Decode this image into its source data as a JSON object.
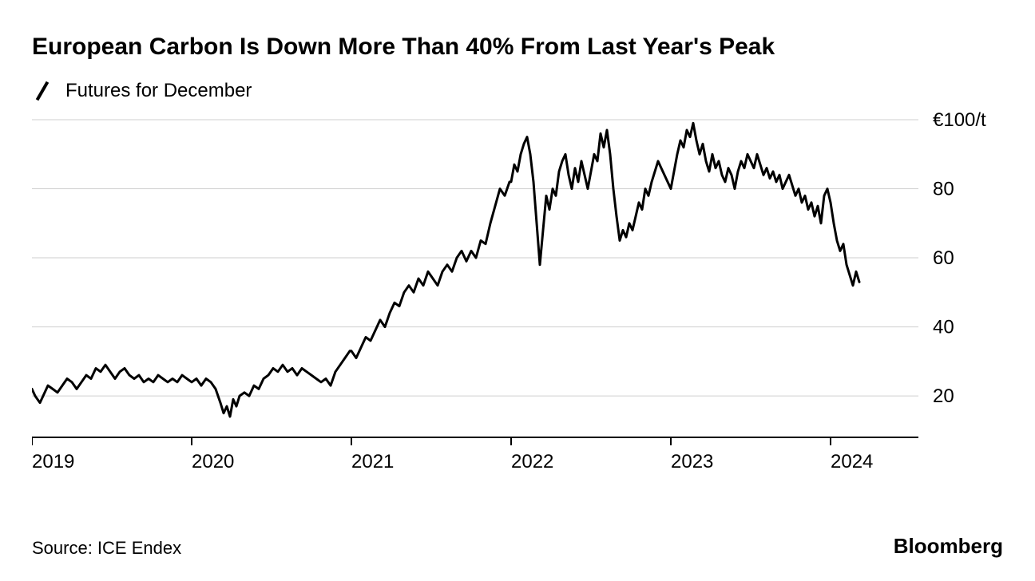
{
  "title": "European Carbon Is Down More Than 40% From Last Year's Peak",
  "legend_label": "Futures for December",
  "source": "Source: ICE Endex",
  "brand": "Bloomberg",
  "chart": {
    "type": "line",
    "background_color": "#ffffff",
    "grid_color": "#cfcfcf",
    "axis_color": "#000000",
    "line_color": "#000000",
    "line_width": 3,
    "font_title": 30,
    "font_labels": 24,
    "xlim": [
      2019.0,
      2024.55
    ],
    "ylim": [
      8,
      100
    ],
    "y_ticks": [
      20,
      40,
      60,
      80,
      100
    ],
    "y_tick_labels": [
      "20",
      "40",
      "60",
      "80",
      "€100/t"
    ],
    "y_top_label_special": true,
    "x_ticks": [
      2019,
      2020,
      2021,
      2022,
      2023,
      2024
    ],
    "x_tick_labels": [
      "2019",
      "2020",
      "2021",
      "2022",
      "2023",
      "2024"
    ],
    "series": [
      {
        "x": 2019.0,
        "y": 22
      },
      {
        "x": 2019.02,
        "y": 20
      },
      {
        "x": 2019.05,
        "y": 18
      },
      {
        "x": 2019.07,
        "y": 20
      },
      {
        "x": 2019.1,
        "y": 23
      },
      {
        "x": 2019.13,
        "y": 22
      },
      {
        "x": 2019.16,
        "y": 21
      },
      {
        "x": 2019.19,
        "y": 23
      },
      {
        "x": 2019.22,
        "y": 25
      },
      {
        "x": 2019.25,
        "y": 24
      },
      {
        "x": 2019.28,
        "y": 22
      },
      {
        "x": 2019.31,
        "y": 24
      },
      {
        "x": 2019.34,
        "y": 26
      },
      {
        "x": 2019.37,
        "y": 25
      },
      {
        "x": 2019.4,
        "y": 28
      },
      {
        "x": 2019.43,
        "y": 27
      },
      {
        "x": 2019.46,
        "y": 29
      },
      {
        "x": 2019.49,
        "y": 27
      },
      {
        "x": 2019.52,
        "y": 25
      },
      {
        "x": 2019.55,
        "y": 27
      },
      {
        "x": 2019.58,
        "y": 28
      },
      {
        "x": 2019.61,
        "y": 26
      },
      {
        "x": 2019.64,
        "y": 25
      },
      {
        "x": 2019.67,
        "y": 26
      },
      {
        "x": 2019.7,
        "y": 24
      },
      {
        "x": 2019.73,
        "y": 25
      },
      {
        "x": 2019.76,
        "y": 24
      },
      {
        "x": 2019.79,
        "y": 26
      },
      {
        "x": 2019.82,
        "y": 25
      },
      {
        "x": 2019.85,
        "y": 24
      },
      {
        "x": 2019.88,
        "y": 25
      },
      {
        "x": 2019.91,
        "y": 24
      },
      {
        "x": 2019.94,
        "y": 26
      },
      {
        "x": 2019.97,
        "y": 25
      },
      {
        "x": 2020.0,
        "y": 24
      },
      {
        "x": 2020.03,
        "y": 25
      },
      {
        "x": 2020.06,
        "y": 23
      },
      {
        "x": 2020.09,
        "y": 25
      },
      {
        "x": 2020.12,
        "y": 24
      },
      {
        "x": 2020.15,
        "y": 22
      },
      {
        "x": 2020.18,
        "y": 18
      },
      {
        "x": 2020.2,
        "y": 15
      },
      {
        "x": 2020.22,
        "y": 17
      },
      {
        "x": 2020.24,
        "y": 14
      },
      {
        "x": 2020.26,
        "y": 19
      },
      {
        "x": 2020.28,
        "y": 17
      },
      {
        "x": 2020.3,
        "y": 20
      },
      {
        "x": 2020.33,
        "y": 21
      },
      {
        "x": 2020.36,
        "y": 20
      },
      {
        "x": 2020.39,
        "y": 23
      },
      {
        "x": 2020.42,
        "y": 22
      },
      {
        "x": 2020.45,
        "y": 25
      },
      {
        "x": 2020.48,
        "y": 26
      },
      {
        "x": 2020.51,
        "y": 28
      },
      {
        "x": 2020.54,
        "y": 27
      },
      {
        "x": 2020.57,
        "y": 29
      },
      {
        "x": 2020.6,
        "y": 27
      },
      {
        "x": 2020.63,
        "y": 28
      },
      {
        "x": 2020.66,
        "y": 26
      },
      {
        "x": 2020.69,
        "y": 28
      },
      {
        "x": 2020.72,
        "y": 27
      },
      {
        "x": 2020.75,
        "y": 26
      },
      {
        "x": 2020.78,
        "y": 25
      },
      {
        "x": 2020.81,
        "y": 24
      },
      {
        "x": 2020.84,
        "y": 25
      },
      {
        "x": 2020.87,
        "y": 23
      },
      {
        "x": 2020.9,
        "y": 27
      },
      {
        "x": 2020.93,
        "y": 29
      },
      {
        "x": 2020.96,
        "y": 31
      },
      {
        "x": 2020.99,
        "y": 33
      },
      {
        "x": 2021.0,
        "y": 33
      },
      {
        "x": 2021.03,
        "y": 31
      },
      {
        "x": 2021.06,
        "y": 34
      },
      {
        "x": 2021.09,
        "y": 37
      },
      {
        "x": 2021.12,
        "y": 36
      },
      {
        "x": 2021.15,
        "y": 39
      },
      {
        "x": 2021.18,
        "y": 42
      },
      {
        "x": 2021.21,
        "y": 40
      },
      {
        "x": 2021.24,
        "y": 44
      },
      {
        "x": 2021.27,
        "y": 47
      },
      {
        "x": 2021.3,
        "y": 46
      },
      {
        "x": 2021.33,
        "y": 50
      },
      {
        "x": 2021.36,
        "y": 52
      },
      {
        "x": 2021.39,
        "y": 50
      },
      {
        "x": 2021.42,
        "y": 54
      },
      {
        "x": 2021.45,
        "y": 52
      },
      {
        "x": 2021.48,
        "y": 56
      },
      {
        "x": 2021.51,
        "y": 54
      },
      {
        "x": 2021.54,
        "y": 52
      },
      {
        "x": 2021.57,
        "y": 56
      },
      {
        "x": 2021.6,
        "y": 58
      },
      {
        "x": 2021.63,
        "y": 56
      },
      {
        "x": 2021.66,
        "y": 60
      },
      {
        "x": 2021.69,
        "y": 62
      },
      {
        "x": 2021.72,
        "y": 59
      },
      {
        "x": 2021.75,
        "y": 62
      },
      {
        "x": 2021.78,
        "y": 60
      },
      {
        "x": 2021.81,
        "y": 65
      },
      {
        "x": 2021.84,
        "y": 64
      },
      {
        "x": 2021.87,
        "y": 70
      },
      {
        "x": 2021.9,
        "y": 75
      },
      {
        "x": 2021.93,
        "y": 80
      },
      {
        "x": 2021.96,
        "y": 78
      },
      {
        "x": 2021.99,
        "y": 82
      },
      {
        "x": 2022.0,
        "y": 82
      },
      {
        "x": 2022.02,
        "y": 87
      },
      {
        "x": 2022.04,
        "y": 85
      },
      {
        "x": 2022.06,
        "y": 90
      },
      {
        "x": 2022.08,
        "y": 93
      },
      {
        "x": 2022.1,
        "y": 95
      },
      {
        "x": 2022.12,
        "y": 90
      },
      {
        "x": 2022.14,
        "y": 82
      },
      {
        "x": 2022.16,
        "y": 70
      },
      {
        "x": 2022.18,
        "y": 58
      },
      {
        "x": 2022.2,
        "y": 68
      },
      {
        "x": 2022.22,
        "y": 78
      },
      {
        "x": 2022.24,
        "y": 74
      },
      {
        "x": 2022.26,
        "y": 80
      },
      {
        "x": 2022.28,
        "y": 78
      },
      {
        "x": 2022.3,
        "y": 85
      },
      {
        "x": 2022.32,
        "y": 88
      },
      {
        "x": 2022.34,
        "y": 90
      },
      {
        "x": 2022.36,
        "y": 84
      },
      {
        "x": 2022.38,
        "y": 80
      },
      {
        "x": 2022.4,
        "y": 86
      },
      {
        "x": 2022.42,
        "y": 82
      },
      {
        "x": 2022.44,
        "y": 88
      },
      {
        "x": 2022.46,
        "y": 84
      },
      {
        "x": 2022.48,
        "y": 80
      },
      {
        "x": 2022.5,
        "y": 85
      },
      {
        "x": 2022.52,
        "y": 90
      },
      {
        "x": 2022.54,
        "y": 88
      },
      {
        "x": 2022.56,
        "y": 96
      },
      {
        "x": 2022.58,
        "y": 92
      },
      {
        "x": 2022.6,
        "y": 97
      },
      {
        "x": 2022.62,
        "y": 90
      },
      {
        "x": 2022.64,
        "y": 80
      },
      {
        "x": 2022.66,
        "y": 72
      },
      {
        "x": 2022.68,
        "y": 65
      },
      {
        "x": 2022.7,
        "y": 68
      },
      {
        "x": 2022.72,
        "y": 66
      },
      {
        "x": 2022.74,
        "y": 70
      },
      {
        "x": 2022.76,
        "y": 68
      },
      {
        "x": 2022.78,
        "y": 72
      },
      {
        "x": 2022.8,
        "y": 76
      },
      {
        "x": 2022.82,
        "y": 74
      },
      {
        "x": 2022.84,
        "y": 80
      },
      {
        "x": 2022.86,
        "y": 78
      },
      {
        "x": 2022.88,
        "y": 82
      },
      {
        "x": 2022.9,
        "y": 85
      },
      {
        "x": 2022.92,
        "y": 88
      },
      {
        "x": 2022.94,
        "y": 86
      },
      {
        "x": 2022.96,
        "y": 84
      },
      {
        "x": 2022.98,
        "y": 82
      },
      {
        "x": 2023.0,
        "y": 80
      },
      {
        "x": 2023.02,
        "y": 85
      },
      {
        "x": 2023.04,
        "y": 90
      },
      {
        "x": 2023.06,
        "y": 94
      },
      {
        "x": 2023.08,
        "y": 92
      },
      {
        "x": 2023.1,
        "y": 97
      },
      {
        "x": 2023.12,
        "y": 95
      },
      {
        "x": 2023.14,
        "y": 99
      },
      {
        "x": 2023.16,
        "y": 94
      },
      {
        "x": 2023.18,
        "y": 90
      },
      {
        "x": 2023.2,
        "y": 93
      },
      {
        "x": 2023.22,
        "y": 88
      },
      {
        "x": 2023.24,
        "y": 85
      },
      {
        "x": 2023.26,
        "y": 90
      },
      {
        "x": 2023.28,
        "y": 86
      },
      {
        "x": 2023.3,
        "y": 88
      },
      {
        "x": 2023.32,
        "y": 84
      },
      {
        "x": 2023.34,
        "y": 82
      },
      {
        "x": 2023.36,
        "y": 86
      },
      {
        "x": 2023.38,
        "y": 84
      },
      {
        "x": 2023.4,
        "y": 80
      },
      {
        "x": 2023.42,
        "y": 85
      },
      {
        "x": 2023.44,
        "y": 88
      },
      {
        "x": 2023.46,
        "y": 86
      },
      {
        "x": 2023.48,
        "y": 90
      },
      {
        "x": 2023.5,
        "y": 88
      },
      {
        "x": 2023.52,
        "y": 86
      },
      {
        "x": 2023.54,
        "y": 90
      },
      {
        "x": 2023.56,
        "y": 87
      },
      {
        "x": 2023.58,
        "y": 84
      },
      {
        "x": 2023.6,
        "y": 86
      },
      {
        "x": 2023.62,
        "y": 83
      },
      {
        "x": 2023.64,
        "y": 85
      },
      {
        "x": 2023.66,
        "y": 82
      },
      {
        "x": 2023.68,
        "y": 84
      },
      {
        "x": 2023.7,
        "y": 80
      },
      {
        "x": 2023.72,
        "y": 82
      },
      {
        "x": 2023.74,
        "y": 84
      },
      {
        "x": 2023.76,
        "y": 81
      },
      {
        "x": 2023.78,
        "y": 78
      },
      {
        "x": 2023.8,
        "y": 80
      },
      {
        "x": 2023.82,
        "y": 76
      },
      {
        "x": 2023.84,
        "y": 78
      },
      {
        "x": 2023.86,
        "y": 74
      },
      {
        "x": 2023.88,
        "y": 76
      },
      {
        "x": 2023.9,
        "y": 72
      },
      {
        "x": 2023.92,
        "y": 75
      },
      {
        "x": 2023.94,
        "y": 70
      },
      {
        "x": 2023.96,
        "y": 78
      },
      {
        "x": 2023.98,
        "y": 80
      },
      {
        "x": 2024.0,
        "y": 76
      },
      {
        "x": 2024.02,
        "y": 70
      },
      {
        "x": 2024.04,
        "y": 65
      },
      {
        "x": 2024.06,
        "y": 62
      },
      {
        "x": 2024.08,
        "y": 64
      },
      {
        "x": 2024.1,
        "y": 58
      },
      {
        "x": 2024.12,
        "y": 55
      },
      {
        "x": 2024.14,
        "y": 52
      },
      {
        "x": 2024.16,
        "y": 56
      },
      {
        "x": 2024.18,
        "y": 53
      }
    ]
  }
}
